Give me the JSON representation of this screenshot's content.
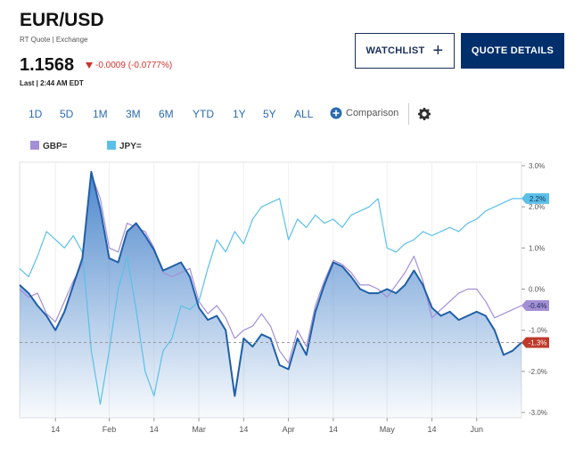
{
  "header": {
    "title": "EUR/USD",
    "subtitle": "RT Quote | Exchange",
    "price": "1.1568",
    "change": "-0.0009 (-0.0777%)",
    "timestamp": "Last | 2:44 AM EDT"
  },
  "buttons": [
    "WATCHLIST",
    "QUOTE DETAILS"
  ],
  "range_tabs": [
    "1D",
    "5D",
    "1M",
    "3M",
    "6M",
    "YTD",
    "1Y",
    "5Y",
    "ALL"
  ],
  "comparison": "Comparison",
  "chart_data": {
    "type": "line",
    "categories": [
      null,
      null,
      null,
      null,
      "14",
      null,
      null,
      null,
      null,
      null,
      "Feb",
      null,
      null,
      null,
      null,
      "14",
      null,
      null,
      null,
      null,
      "Mar",
      null,
      null,
      null,
      null,
      "14",
      null,
      null,
      null,
      null,
      "Apr",
      null,
      null,
      null,
      null,
      "14",
      null,
      null,
      null,
      null,
      null,
      "May",
      null,
      null,
      null,
      null,
      "14",
      null,
      null,
      null,
      null,
      "Jun",
      null,
      null,
      null,
      null,
      null
    ],
    "series": [
      {
        "color": "#1f5fa8",
        "area": true,
        "last_label": "-1.3%",
        "label_color": "#c0392b",
        "values": [
          0.1,
          -0.1,
          -0.4,
          -0.65,
          -1.0,
          -0.55,
          0.1,
          0.75,
          2.85,
          1.95,
          0.75,
          0.65,
          1.4,
          1.6,
          1.3,
          0.95,
          0.45,
          0.55,
          0.65,
          0.3,
          -0.45,
          -0.75,
          -0.65,
          -1.0,
          -2.6,
          -1.2,
          -1.4,
          -1.1,
          -1.2,
          -1.85,
          -1.95,
          -1.2,
          -1.6,
          -0.55,
          0.1,
          0.65,
          0.55,
          0.3,
          0,
          -0.1,
          -0.1,
          0,
          -0.1,
          0.1,
          0.45,
          0.1,
          -0.45,
          -0.65,
          -0.55,
          -0.75,
          -0.65,
          -0.55,
          -0.65,
          -1.0,
          -1.6,
          -1.5,
          -1.3
        ]
      },
      {
        "name": "GBP=",
        "color": "#a48fd6",
        "last_label": "-0.4%",
        "label_color": "#a48fd6",
        "values": [
          0.0,
          -0.2,
          -0.1,
          -0.6,
          -0.8,
          -0.3,
          0.2,
          0.6,
          2.8,
          2.2,
          1.0,
          0.9,
          1.6,
          1.5,
          1.4,
          1.0,
          0.4,
          0.3,
          0.4,
          0.5,
          -0.3,
          -0.6,
          -0.4,
          -0.7,
          -1.2,
          -1.0,
          -0.9,
          -0.6,
          -0.9,
          -1.5,
          -1.8,
          -1.0,
          -1.4,
          -0.4,
          0.2,
          0.7,
          0.6,
          0.4,
          0.1,
          0.1,
          0.0,
          -0.2,
          0.1,
          0.4,
          0.8,
          0.2,
          -0.7,
          -0.5,
          -0.3,
          -0.1,
          0.0,
          0.0,
          -0.3,
          -0.7,
          -0.6,
          -0.5,
          -0.4
        ]
      },
      {
        "name": "JPY=",
        "color": "#5bc0e8",
        "last_label": "2.2%",
        "label_color": "#5bc0e8",
        "values": [
          0.5,
          0.3,
          0.8,
          1.4,
          1.2,
          1.0,
          1.3,
          0.9,
          -1.5,
          -2.8,
          -1.5,
          0.0,
          0.8,
          -0.5,
          -2.0,
          -2.6,
          -1.5,
          -1.2,
          -0.4,
          -0.5,
          -0.3,
          0.5,
          1.2,
          0.9,
          1.4,
          1.1,
          1.7,
          2.0,
          2.1,
          2.2,
          1.2,
          1.7,
          1.5,
          1.8,
          1.6,
          1.7,
          1.5,
          1.8,
          1.9,
          2.0,
          2.2,
          1.0,
          0.9,
          1.1,
          1.2,
          1.4,
          1.3,
          1.4,
          1.5,
          1.4,
          1.6,
          1.7,
          1.9,
          2.0,
          2.1,
          2.2,
          2.2
        ]
      }
    ],
    "ylim": [
      -3,
      3
    ],
    "yticks": [
      {
        "value": 3,
        "label": "3.0%"
      },
      {
        "value": 2,
        "label": "2.0%"
      },
      {
        "value": 1,
        "label": "1.0%"
      },
      {
        "value": 0,
        "label": "0.0%"
      },
      {
        "value": -1,
        "label": "-1.0%"
      },
      {
        "value": -2,
        "label": "-2.0%"
      },
      {
        "value": -3,
        "label": "-3.0%"
      }
    ],
    "grid": true
  }
}
